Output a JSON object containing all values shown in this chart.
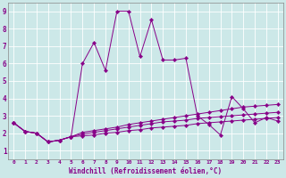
{
  "xlabel": "Windchill (Refroidissement éolien,°C)",
  "bg_color": "#cce8e8",
  "line_color": "#880088",
  "xlim": [
    -0.5,
    23.5
  ],
  "ylim": [
    0.5,
    9.5
  ],
  "xticks": [
    0,
    1,
    2,
    3,
    4,
    5,
    6,
    7,
    8,
    9,
    10,
    11,
    12,
    13,
    14,
    15,
    16,
    17,
    18,
    19,
    20,
    21,
    22,
    23
  ],
  "yticks": [
    1,
    2,
    3,
    4,
    5,
    6,
    7,
    8,
    9
  ],
  "series": [
    [
      2.6,
      2.1,
      2.0,
      1.5,
      1.6,
      1.8,
      6.0,
      7.2,
      5.6,
      9.0,
      9.0,
      6.4,
      8.5,
      6.2,
      6.2,
      6.3,
      3.0,
      2.5,
      1.9,
      4.1,
      3.4,
      2.6,
      2.9,
      2.7
    ],
    [
      2.6,
      2.1,
      2.0,
      1.5,
      1.6,
      1.8,
      2.05,
      2.15,
      2.25,
      2.35,
      2.5,
      2.6,
      2.7,
      2.8,
      2.9,
      3.0,
      3.1,
      3.2,
      3.3,
      3.4,
      3.5,
      3.55,
      3.6,
      3.65
    ],
    [
      2.6,
      2.1,
      2.0,
      1.5,
      1.6,
      1.8,
      1.95,
      2.05,
      2.15,
      2.25,
      2.35,
      2.45,
      2.55,
      2.65,
      2.7,
      2.75,
      2.85,
      2.9,
      2.95,
      3.0,
      3.05,
      3.1,
      3.15,
      3.2
    ],
    [
      2.6,
      2.1,
      2.0,
      1.5,
      1.6,
      1.8,
      1.85,
      1.9,
      2.0,
      2.05,
      2.15,
      2.2,
      2.3,
      2.35,
      2.4,
      2.45,
      2.55,
      2.6,
      2.65,
      2.7,
      2.75,
      2.8,
      2.85,
      2.9
    ]
  ]
}
